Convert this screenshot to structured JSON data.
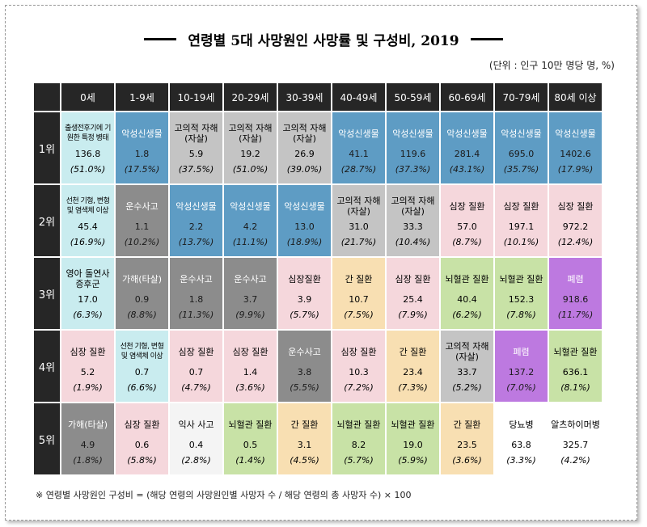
{
  "title": "연령별 5대 사망원인 사망률 및 구성비, 2019",
  "unit": "(단위 : 인구 10만 명당 명, %)",
  "headers": [
    "0세",
    "1-9세",
    "10-19세",
    "20-29세",
    "30-39세",
    "40-49세",
    "50-59세",
    "60-69세",
    "70-79세",
    "80세 이상"
  ],
  "ranks": [
    "1위",
    "2위",
    "3위",
    "4위",
    "5위"
  ],
  "rows": [
    [
      {
        "name": "출생전후기에 기원한 특정 병태",
        "value": "136.8",
        "pct": "(51.0%)",
        "color": "#c9ecef"
      },
      {
        "name": "악성신생물",
        "value": "1.8",
        "pct": "(17.5%)",
        "color": "#5e9cc4"
      },
      {
        "name": "고의적 자해(자살)",
        "value": "5.9",
        "pct": "(37.5%)",
        "color": "#c4c4c4"
      },
      {
        "name": "고의적 자해(자살)",
        "value": "19.2",
        "pct": "(51.0%)",
        "color": "#c4c4c4"
      },
      {
        "name": "고의적 자해(자살)",
        "value": "26.9",
        "pct": "(39.0%)",
        "color": "#c4c4c4"
      },
      {
        "name": "악성신생물",
        "value": "41.1",
        "pct": "(28.7%)",
        "color": "#5e9cc4"
      },
      {
        "name": "악성신생물",
        "value": "119.6",
        "pct": "(37.3%)",
        "color": "#5e9cc4"
      },
      {
        "name": "악성신생물",
        "value": "281.4",
        "pct": "(43.1%)",
        "color": "#5e9cc4"
      },
      {
        "name": "악성신생물",
        "value": "695.0",
        "pct": "(35.7%)",
        "color": "#5e9cc4"
      },
      {
        "name": "악성신생물",
        "value": "1402.6",
        "pct": "(17.9%)",
        "color": "#5e9cc4"
      }
    ],
    [
      {
        "name": "선천 기형, 변형 및 염색체 이상",
        "value": "45.4",
        "pct": "(16.9%)",
        "color": "#c9ecef"
      },
      {
        "name": "운수사고",
        "value": "1.1",
        "pct": "(10.2%)",
        "color": "#8c8c8c"
      },
      {
        "name": "악성신생물",
        "value": "2.2",
        "pct": "(13.7%)",
        "color": "#5e9cc4"
      },
      {
        "name": "악성신생물",
        "value": "4.2",
        "pct": "(11.1%)",
        "color": "#5e9cc4"
      },
      {
        "name": "악성신생물",
        "value": "13.0",
        "pct": "(18.9%)",
        "color": "#5e9cc4"
      },
      {
        "name": "고의적 자해(자살)",
        "value": "31.0",
        "pct": "(21.7%)",
        "color": "#c4c4c4"
      },
      {
        "name": "고의적 자해(자살)",
        "value": "33.3",
        "pct": "(10.4%)",
        "color": "#c4c4c4"
      },
      {
        "name": "심장 질환",
        "value": "57.0",
        "pct": "(8.7%)",
        "color": "#f5d7dc"
      },
      {
        "name": "심장 질환",
        "value": "197.1",
        "pct": "(10.1%)",
        "color": "#f5d7dc"
      },
      {
        "name": "심장 질환",
        "value": "972.2",
        "pct": "(12.4%)",
        "color": "#f5d7dc"
      }
    ],
    [
      {
        "name": "영아 돌연사 증후군",
        "value": "17.0",
        "pct": "(6.3%)",
        "color": "#c9ecef"
      },
      {
        "name": "가해(타살)",
        "value": "0.9",
        "pct": "(8.8%)",
        "color": "#8c8c8c"
      },
      {
        "name": "운수사고",
        "value": "1.8",
        "pct": "(11.3%)",
        "color": "#8c8c8c"
      },
      {
        "name": "운수사고",
        "value": "3.7",
        "pct": "(9.9%)",
        "color": "#8c8c8c"
      },
      {
        "name": "심장질환",
        "value": "3.9",
        "pct": "(5.7%)",
        "color": "#f5d7dc"
      },
      {
        "name": "간 질환",
        "value": "10.7",
        "pct": "(7.5%)",
        "color": "#f8dfb2"
      },
      {
        "name": "심장 질환",
        "value": "25.4",
        "pct": "(7.9%)",
        "color": "#f5d7dc"
      },
      {
        "name": "뇌혈관 질환",
        "value": "40.4",
        "pct": "(6.2%)",
        "color": "#c8e2a6"
      },
      {
        "name": "뇌혈관 질환",
        "value": "152.3",
        "pct": "(7.8%)",
        "color": "#c8e2a6"
      },
      {
        "name": "폐렴",
        "value": "918.6",
        "pct": "(11.7%)",
        "color": "#bd79e0"
      }
    ],
    [
      {
        "name": "심장 질환",
        "value": "5.2",
        "pct": "(1.9%)",
        "color": "#f5d7dc"
      },
      {
        "name": "선천 기형, 변형 및 염색체 이상",
        "value": "0.7",
        "pct": "(6.6%)",
        "color": "#c9ecef"
      },
      {
        "name": "심장 질환",
        "value": "0.7",
        "pct": "(4.7%)",
        "color": "#f5d7dc"
      },
      {
        "name": "심장 질환",
        "value": "1.4",
        "pct": "(3.6%)",
        "color": "#f5d7dc"
      },
      {
        "name": "운수사고",
        "value": "3.8",
        "pct": "(5.5%)",
        "color": "#8c8c8c"
      },
      {
        "name": "심장 질환",
        "value": "10.3",
        "pct": "(7.2%)",
        "color": "#f5d7dc"
      },
      {
        "name": "간 질환",
        "value": "23.4",
        "pct": "(7.3%)",
        "color": "#f8dfb2"
      },
      {
        "name": "고의적 자해(자살)",
        "value": "33.7",
        "pct": "(5.2%)",
        "color": "#c4c4c4"
      },
      {
        "name": "폐렴",
        "value": "137.2",
        "pct": "(7.0%)",
        "color": "#bd79e0"
      },
      {
        "name": "뇌혈관 질환",
        "value": "636.1",
        "pct": "(8.1%)",
        "color": "#c8e2a6"
      }
    ],
    [
      {
        "name": "가해(타살)",
        "value": "4.9",
        "pct": "(1.8%)",
        "color": "#8c8c8c"
      },
      {
        "name": "심장 질환",
        "value": "0.6",
        "pct": "(5.8%)",
        "color": "#f5d7dc"
      },
      {
        "name": "익사 사고",
        "value": "0.4",
        "pct": "(2.8%)",
        "color": "#f4f4f4"
      },
      {
        "name": "뇌혈관 질환",
        "value": "0.5",
        "pct": "(1.4%)",
        "color": "#c8e2a6"
      },
      {
        "name": "간 질환",
        "value": "3.1",
        "pct": "(4.5%)",
        "color": "#f8dfb2"
      },
      {
        "name": "뇌혈관 질환",
        "value": "8.2",
        "pct": "(5.7%)",
        "color": "#c8e2a6"
      },
      {
        "name": "뇌혈관 질환",
        "value": "19.0",
        "pct": "(5.9%)",
        "color": "#c8e2a6"
      },
      {
        "name": "간 질환",
        "value": "23.5",
        "pct": "(3.6%)",
        "color": "#f8dfb2"
      },
      {
        "name": "당뇨병",
        "value": "63.8",
        "pct": "(3.3%)",
        "color": "#ffffff"
      },
      {
        "name": "알츠하이머병",
        "value": "325.7",
        "pct": "(4.2%)",
        "color": "#ffffff"
      }
    ]
  ],
  "note": "※  연령별 사망원인 구성비 = (해당 연령의 사망원인별 사망자 수 / 해당 연령의 총 사망자 수) × 100"
}
